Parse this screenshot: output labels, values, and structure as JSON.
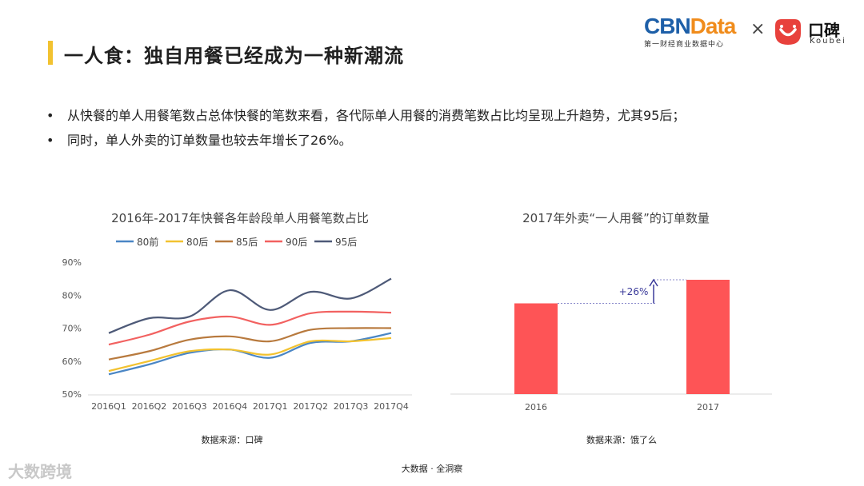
{
  "header": {
    "title": "一人食：独自用餐已经成为一种新潮流",
    "logo_cbn": "CBNData",
    "logo_cbn_sub": "第一财经商业数据中心",
    "logo_times": "×",
    "logo_koubei_cn": "口碑",
    "logo_koubei_en": "Koubei"
  },
  "bullets": [
    "从快餐的单人用餐笔数占总体快餐的笔数来看，各代际单人用餐的消费笔数占比均呈现上升趋势，尤其95后；",
    "同时，单人外卖的订单数量也较去年增长了26%。"
  ],
  "bullet_mark": "•",
  "colors": {
    "accent": "#f2c230",
    "cbn_blue": "#1d5fa8",
    "cbn_orange": "#f08c1c",
    "koubei_red": "#e8413c",
    "bar": "#fe5456"
  },
  "chart_data": [
    {
      "type": "line",
      "title": "2016年-2017年快餐各年龄段单人用餐笔数占比",
      "categories": [
        "2016Q1",
        "2016Q2",
        "2016Q3",
        "2016Q4",
        "2017Q1",
        "2017Q2",
        "2017Q3",
        "2017Q4"
      ],
      "series": [
        {
          "name": "80前",
          "color": "#4a86c5",
          "values": [
            56,
            59,
            62.5,
            63.5,
            61,
            65.5,
            66,
            68.5
          ]
        },
        {
          "name": "80后",
          "color": "#f2c230",
          "values": [
            57,
            60,
            63,
            63.5,
            62,
            66,
            66,
            67
          ]
        },
        {
          "name": "85后",
          "color": "#b87a3e",
          "values": [
            60.5,
            63,
            66.5,
            67.5,
            66,
            69.5,
            70,
            70
          ]
        },
        {
          "name": "90后",
          "color": "#f26160",
          "values": [
            65,
            68,
            72,
            73.5,
            71,
            74.5,
            75,
            74.7
          ]
        },
        {
          "name": "95后",
          "color": "#4e5a78",
          "values": [
            68.5,
            73,
            73.5,
            81.5,
            75.5,
            81,
            79,
            85
          ]
        }
      ],
      "yticks": [
        "50%",
        "60%",
        "70%",
        "80%",
        "90%"
      ],
      "ylim": [
        50,
        90
      ],
      "legend": "top",
      "source": "数据来源：口碑"
    },
    {
      "type": "bar",
      "title": "2017年外卖“一人用餐”的订单数量",
      "categories": [
        "2016",
        "2017"
      ],
      "values": [
        100,
        126
      ],
      "annotation": "+26%",
      "source": "数据来源：饿了么"
    }
  ],
  "footer": {
    "text": "大数据 · 全洞察",
    "brand": "大数跨境"
  }
}
